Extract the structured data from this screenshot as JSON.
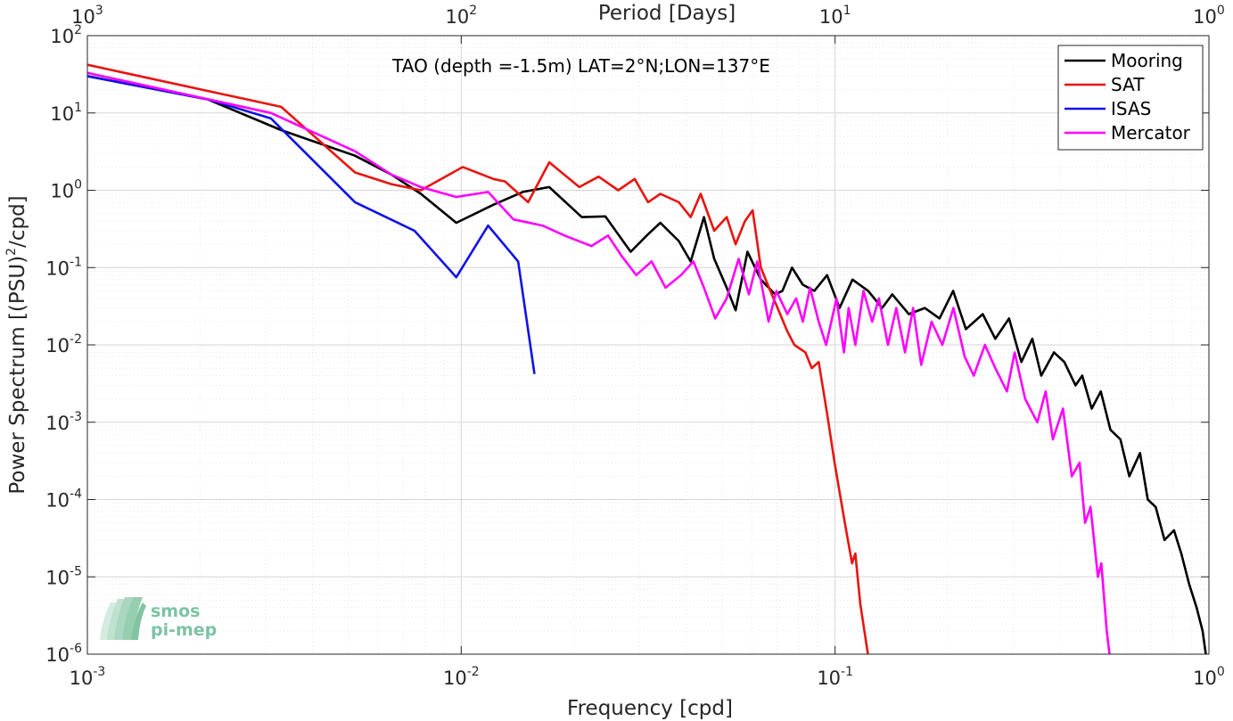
{
  "chart_data": {
    "type": "line",
    "title": "TAO (depth =-1.5m) LAT=2°N;LON=137°E",
    "xlabel": "Frequency [cpd]",
    "ylabel_parts": [
      "Power Spectrum [(PSU)",
      "2",
      "/cpd]"
    ],
    "top_xlabel": "Period [Days]",
    "xscale": "log",
    "yscale": "log",
    "xlim": [
      0.001,
      1
    ],
    "ylim": [
      1e-06,
      100
    ],
    "grid": true,
    "legend_position": "top-right",
    "x_ticks": [
      {
        "value": 0.001,
        "base": "10",
        "exp": "-3"
      },
      {
        "value": 0.01,
        "base": "10",
        "exp": "-2"
      },
      {
        "value": 0.1,
        "base": "10",
        "exp": "-1"
      },
      {
        "value": 1,
        "base": "10",
        "exp": "0"
      }
    ],
    "top_ticks": [
      {
        "value": 0.001,
        "base": "10",
        "exp": "3"
      },
      {
        "value": 0.01,
        "base": "10",
        "exp": "2"
      },
      {
        "value": 0.1,
        "base": "10",
        "exp": "1"
      },
      {
        "value": 1,
        "base": "10",
        "exp": "0"
      }
    ],
    "y_ticks": [
      {
        "value": 100,
        "base": "10",
        "exp": "2"
      },
      {
        "value": 10,
        "base": "10",
        "exp": "1"
      },
      {
        "value": 1,
        "base": "10",
        "exp": "0"
      },
      {
        "value": 0.1,
        "base": "10",
        "exp": "-1"
      },
      {
        "value": 0.01,
        "base": "10",
        "exp": "-2"
      },
      {
        "value": 0.001,
        "base": "10",
        "exp": "-3"
      },
      {
        "value": 0.0001,
        "base": "10",
        "exp": "-4"
      },
      {
        "value": 1e-05,
        "base": "10",
        "exp": "-5"
      },
      {
        "value": 1e-06,
        "base": "10",
        "exp": "-6"
      }
    ],
    "series": [
      {
        "name": "Mooring",
        "color": "#000000",
        "points": [
          [
            0.001,
            30
          ],
          [
            0.0021,
            15
          ],
          [
            0.0033,
            6
          ],
          [
            0.0052,
            2.8
          ],
          [
            0.0065,
            1.6
          ],
          [
            0.0078,
            0.9
          ],
          [
            0.0097,
            0.38
          ],
          [
            0.0122,
            0.65
          ],
          [
            0.0146,
            0.95
          ],
          [
            0.0172,
            1.1
          ],
          [
            0.021,
            0.45
          ],
          [
            0.0243,
            0.46
          ],
          [
            0.0284,
            0.16
          ],
          [
            0.0316,
            0.27
          ],
          [
            0.0341,
            0.38
          ],
          [
            0.0382,
            0.22
          ],
          [
            0.0411,
            0.12
          ],
          [
            0.0446,
            0.45
          ],
          [
            0.0475,
            0.13
          ],
          [
            0.0513,
            0.055
          ],
          [
            0.0542,
            0.028
          ],
          [
            0.0583,
            0.16
          ],
          [
            0.0633,
            0.07
          ],
          [
            0.0691,
            0.045
          ],
          [
            0.0723,
            0.05
          ],
          [
            0.0767,
            0.1
          ],
          [
            0.082,
            0.06
          ],
          [
            0.088,
            0.05
          ],
          [
            0.0952,
            0.08
          ],
          [
            0.1028,
            0.03
          ],
          [
            0.1113,
            0.07
          ],
          [
            0.1226,
            0.05
          ],
          [
            0.1336,
            0.03
          ],
          [
            0.1422,
            0.045
          ],
          [
            0.1575,
            0.025
          ],
          [
            0.1738,
            0.03
          ],
          [
            0.1903,
            0.022
          ],
          [
            0.2069,
            0.05
          ],
          [
            0.2238,
            0.016
          ],
          [
            0.2483,
            0.025
          ],
          [
            0.2683,
            0.012
          ],
          [
            0.2919,
            0.022
          ],
          [
            0.315,
            0.006
          ],
          [
            0.3369,
            0.012
          ],
          [
            0.3559,
            0.004
          ],
          [
            0.385,
            0.008
          ],
          [
            0.4104,
            0.006
          ],
          [
            0.4397,
            0.003
          ],
          [
            0.4584,
            0.004
          ],
          [
            0.4858,
            0.0015
          ],
          [
            0.5138,
            0.0025
          ],
          [
            0.5451,
            0.0008
          ],
          [
            0.5796,
            0.0006
          ],
          [
            0.6123,
            0.0002
          ],
          [
            0.6542,
            0.0004
          ],
          [
            0.686,
            0.0001
          ],
          [
            0.7203,
            8e-05
          ],
          [
            0.7607,
            3e-05
          ],
          [
            0.8062,
            4e-05
          ],
          [
            0.8437,
            2e-05
          ],
          [
            0.8857,
            8e-06
          ],
          [
            0.927,
            4e-06
          ],
          [
            0.9619,
            2e-06
          ],
          [
            0.9808,
            1e-06
          ]
        ]
      },
      {
        "name": "SAT",
        "color": "#e8140f",
        "points": [
          [
            0.001,
            42
          ],
          [
            0.0033,
            12
          ],
          [
            0.0052,
            1.7
          ],
          [
            0.0065,
            1.2
          ],
          [
            0.0078,
            1.0
          ],
          [
            0.0101,
            2.0
          ],
          [
            0.0122,
            1.4
          ],
          [
            0.0131,
            1.3
          ],
          [
            0.0151,
            0.7
          ],
          [
            0.0172,
            2.3
          ],
          [
            0.0207,
            1.1
          ],
          [
            0.0233,
            1.5
          ],
          [
            0.0263,
            1.0
          ],
          [
            0.0291,
            1.4
          ],
          [
            0.0316,
            0.7
          ],
          [
            0.0341,
            0.9
          ],
          [
            0.0382,
            0.7
          ],
          [
            0.0411,
            0.45
          ],
          [
            0.0437,
            0.9
          ],
          [
            0.0475,
            0.3
          ],
          [
            0.0513,
            0.45
          ],
          [
            0.0542,
            0.2
          ],
          [
            0.0574,
            0.4
          ],
          [
            0.0602,
            0.55
          ],
          [
            0.0633,
            0.1
          ],
          [
            0.0671,
            0.05
          ],
          [
            0.0702,
            0.03
          ],
          [
            0.0745,
            0.015
          ],
          [
            0.0778,
            0.01
          ],
          [
            0.0833,
            0.008
          ],
          [
            0.0866,
            0.005
          ],
          [
            0.0904,
            0.006
          ],
          [
            0.0952,
            0.0013
          ],
          [
            0.0997,
            0.0003
          ],
          [
            0.1062,
            5e-05
          ],
          [
            0.111,
            1.5e-05
          ],
          [
            0.1133,
            2e-05
          ],
          [
            0.1168,
            4.5e-06
          ],
          [
            0.1224,
            1e-06
          ]
        ]
      },
      {
        "name": "ISAS",
        "color": "#1111e8",
        "points": [
          [
            0.001,
            30
          ],
          [
            0.0021,
            15
          ],
          [
            0.0031,
            8.5
          ],
          [
            0.0052,
            0.7
          ],
          [
            0.0075,
            0.3
          ],
          [
            0.0097,
            0.075
          ],
          [
            0.0118,
            0.35
          ],
          [
            0.0142,
            0.12
          ],
          [
            0.0157,
            0.0042
          ]
        ]
      },
      {
        "name": "Mercator",
        "color": "#ff00ff",
        "points": [
          [
            0.001,
            33
          ],
          [
            0.0031,
            10
          ],
          [
            0.0052,
            3.2
          ],
          [
            0.0065,
            1.6
          ],
          [
            0.0078,
            1.1
          ],
          [
            0.0097,
            0.82
          ],
          [
            0.0118,
            0.95
          ],
          [
            0.0138,
            0.42
          ],
          [
            0.0165,
            0.35
          ],
          [
            0.0189,
            0.26
          ],
          [
            0.0223,
            0.19
          ],
          [
            0.0247,
            0.26
          ],
          [
            0.0269,
            0.14
          ],
          [
            0.0294,
            0.08
          ],
          [
            0.0323,
            0.12
          ],
          [
            0.0352,
            0.055
          ],
          [
            0.0387,
            0.08
          ],
          [
            0.0418,
            0.12
          ],
          [
            0.0446,
            0.055
          ],
          [
            0.0478,
            0.022
          ],
          [
            0.0513,
            0.04
          ],
          [
            0.0552,
            0.13
          ],
          [
            0.0588,
            0.045
          ],
          [
            0.0619,
            0.12
          ],
          [
            0.0664,
            0.02
          ],
          [
            0.0697,
            0.05
          ],
          [
            0.0745,
            0.025
          ],
          [
            0.0787,
            0.04
          ],
          [
            0.082,
            0.02
          ],
          [
            0.0857,
            0.055
          ],
          [
            0.0904,
            0.02
          ],
          [
            0.0946,
            0.01
          ],
          [
            0.1009,
            0.04
          ],
          [
            0.1056,
            0.008
          ],
          [
            0.1087,
            0.03
          ],
          [
            0.1133,
            0.01
          ],
          [
            0.1191,
            0.05
          ],
          [
            0.1257,
            0.02
          ],
          [
            0.131,
            0.04
          ],
          [
            0.1385,
            0.01
          ],
          [
            0.1458,
            0.03
          ],
          [
            0.1538,
            0.008
          ],
          [
            0.1617,
            0.03
          ],
          [
            0.17,
            0.0055
          ],
          [
            0.1812,
            0.02
          ],
          [
            0.1936,
            0.01
          ],
          [
            0.2073,
            0.03
          ],
          [
            0.2223,
            0.007
          ],
          [
            0.2349,
            0.004
          ],
          [
            0.2517,
            0.01
          ],
          [
            0.2683,
            0.005
          ],
          [
            0.2881,
            0.0025
          ],
          [
            0.3023,
            0.008
          ],
          [
            0.3224,
            0.002
          ],
          [
            0.3474,
            0.001
          ],
          [
            0.3659,
            0.0025
          ],
          [
            0.3826,
            0.0006
          ],
          [
            0.4071,
            0.0015
          ],
          [
            0.4298,
            0.0002
          ],
          [
            0.4509,
            0.0003
          ],
          [
            0.4663,
            5e-05
          ],
          [
            0.4824,
            8e-05
          ],
          [
            0.5048,
            1e-05
          ],
          [
            0.5153,
            1.5e-05
          ],
          [
            0.5331,
            2e-06
          ],
          [
            0.5422,
            1e-06
          ]
        ]
      }
    ]
  },
  "logo": {
    "line1": "smos",
    "line2": "pi-mep"
  }
}
